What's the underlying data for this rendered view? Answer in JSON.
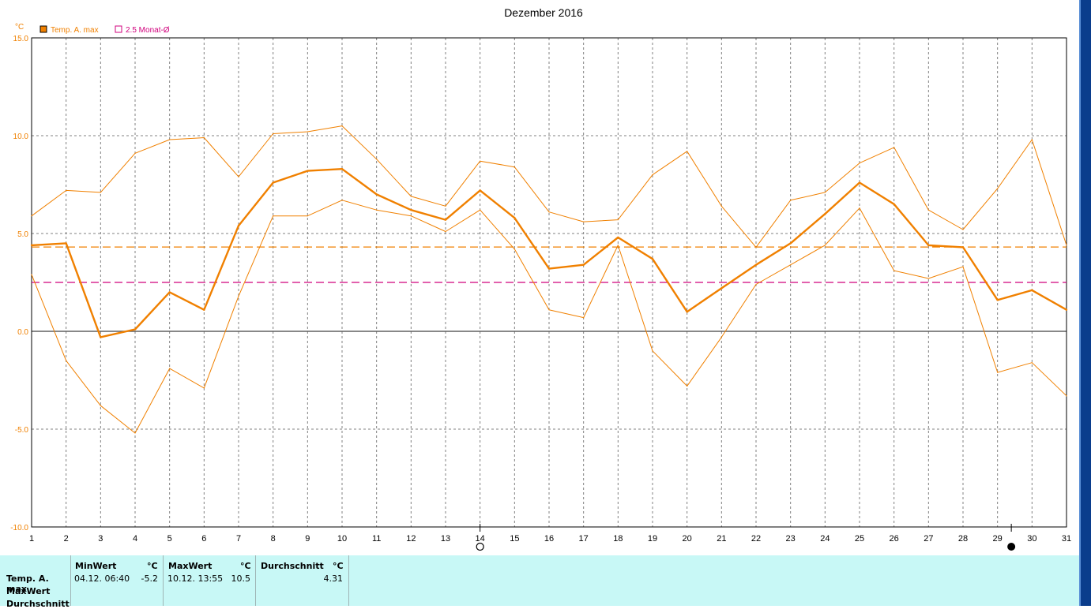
{
  "chart_data": {
    "type": "line",
    "title": "Dezember 2016",
    "y_unit": "°C",
    "ylim": [
      -10,
      15
    ],
    "y_ticks": [
      15,
      10,
      5,
      0,
      -5,
      -10
    ],
    "y_tick_labels": [
      "15.0",
      "10.0",
      "5.0",
      "0.0",
      "-5.0",
      "-10.0"
    ],
    "x": [
      1,
      2,
      3,
      4,
      5,
      6,
      7,
      8,
      9,
      10,
      11,
      12,
      13,
      14,
      15,
      16,
      17,
      18,
      19,
      20,
      21,
      22,
      23,
      24,
      25,
      26,
      27,
      28,
      29,
      30,
      31
    ],
    "x_tick_labels": [
      "1",
      "2",
      "3",
      "4",
      "5",
      "6",
      "7",
      "8",
      "9",
      "10",
      "11",
      "12",
      "13",
      "14",
      "15",
      "16",
      "17",
      "18",
      "19",
      "20",
      "21",
      "22",
      "23",
      "24",
      "25",
      "26",
      "27",
      "28",
      "29",
      "30",
      "31"
    ],
    "grid": true,
    "legend_position": "top-left",
    "legend": [
      {
        "label": "Temp. A. max",
        "color": "#f08000",
        "marker": "filled-square"
      },
      {
        "label": "2.5 Monat-Ø",
        "color": "#d0007c",
        "marker": "open-square"
      }
    ],
    "series": [
      {
        "name": "Temp. A. max",
        "color": "#f08000",
        "values": [
          4.4,
          4.5,
          -0.3,
          0.1,
          2.0,
          1.1,
          5.4,
          7.6,
          8.2,
          8.3,
          7.0,
          6.2,
          5.7,
          7.2,
          5.8,
          3.2,
          3.4,
          4.8,
          3.7,
          1.0,
          2.2,
          3.4,
          4.5,
          6.0,
          7.6,
          6.5,
          4.4,
          4.3,
          1.6,
          2.1,
          1.1
        ]
      },
      {
        "color": "#f08000",
        "values": [
          5.9,
          7.2,
          7.1,
          9.1,
          9.8,
          9.9,
          7.9,
          10.1,
          10.2,
          10.5,
          8.8,
          6.9,
          6.4,
          8.7,
          8.4,
          6.1,
          5.6,
          5.7,
          8.0,
          9.2,
          6.4,
          4.3,
          6.7,
          7.1,
          8.6,
          9.4,
          6.2,
          5.2,
          7.3,
          9.8,
          4.4
        ]
      },
      {
        "color": "#f08000",
        "values": [
          2.9,
          -1.5,
          -3.8,
          -5.2,
          -1.9,
          -2.9,
          1.8,
          5.9,
          5.9,
          6.7,
          6.2,
          5.9,
          5.1,
          6.2,
          4.2,
          1.1,
          0.7,
          4.4,
          -1.0,
          -2.8,
          -0.3,
          2.4,
          3.4,
          4.4,
          6.3,
          3.1,
          2.7,
          3.3,
          -2.1,
          -1.6,
          -3.3
        ]
      }
    ],
    "reference_lines": [
      {
        "value": 4.31,
        "color": "#f08000",
        "style": "dashed"
      },
      {
        "value": 2.5,
        "color": "#d0007c",
        "style": "dashed"
      }
    ],
    "moon_phases": [
      {
        "x": 14,
        "phase": "full"
      },
      {
        "x": 29.4,
        "phase": "new"
      }
    ]
  },
  "stats": {
    "row_labels": [
      "Temp. A. max",
      "MaxWert",
      "Durchschnitt"
    ],
    "columns": [
      {
        "header": "MinWert",
        "unit": "°C",
        "time": "04.12.  06:40",
        "value": "-5.2"
      },
      {
        "header": "MaxWert",
        "unit": "°C",
        "time": "10.12.  13:55",
        "value": "10.5"
      },
      {
        "header": "Durchschnitt",
        "unit": "°C",
        "time": "",
        "value": "4.31"
      }
    ]
  }
}
